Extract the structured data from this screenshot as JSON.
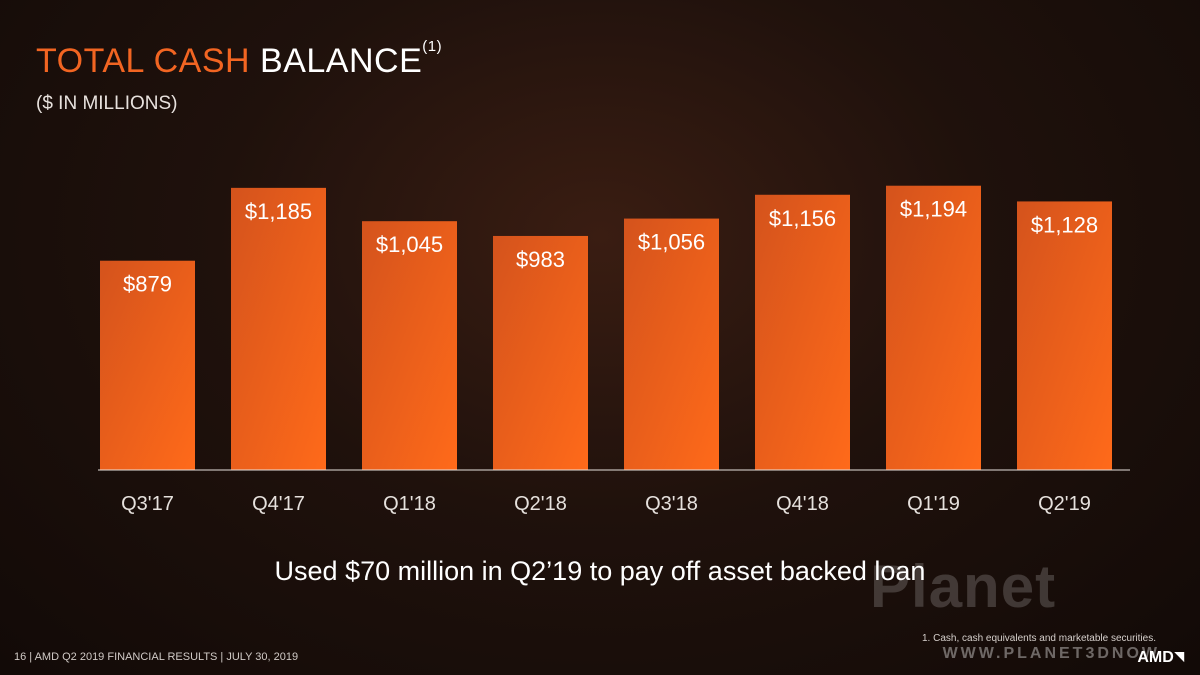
{
  "title_orange": "TOTAL CASH",
  "title_white": "BALANCE",
  "title_sup": "(1)",
  "subtitle": "($ IN MILLIONS)",
  "chart_data": {
    "type": "bar",
    "categories": [
      "Q3'17",
      "Q4'17",
      "Q1'18",
      "Q2'18",
      "Q3'18",
      "Q4'18",
      "Q1'19",
      "Q2'19"
    ],
    "values": [
      879,
      1185,
      1045,
      983,
      1056,
      1156,
      1194,
      1128
    ],
    "data_labels": [
      "$879",
      "$1,185",
      "$1,045",
      "$983",
      "$1,056",
      "$1,156",
      "$1,194",
      "$1,128"
    ],
    "ylim": [
      0,
      1260
    ],
    "bar_color": "#f26522",
    "grid": false
  },
  "note": "Used $70 million in Q2’19 to pay off asset backed loan",
  "footnote": "1.  Cash, cash equivalents and marketable securities.",
  "footer": "16  |  AMD Q2 2019 FINANCIAL RESULTS | JULY 30, 2019",
  "logo": "AMD",
  "logo_icon": "amd-arrow-icon",
  "watermark": "Planet",
  "watermark_sub": "WWW.PLANET3DNOW"
}
